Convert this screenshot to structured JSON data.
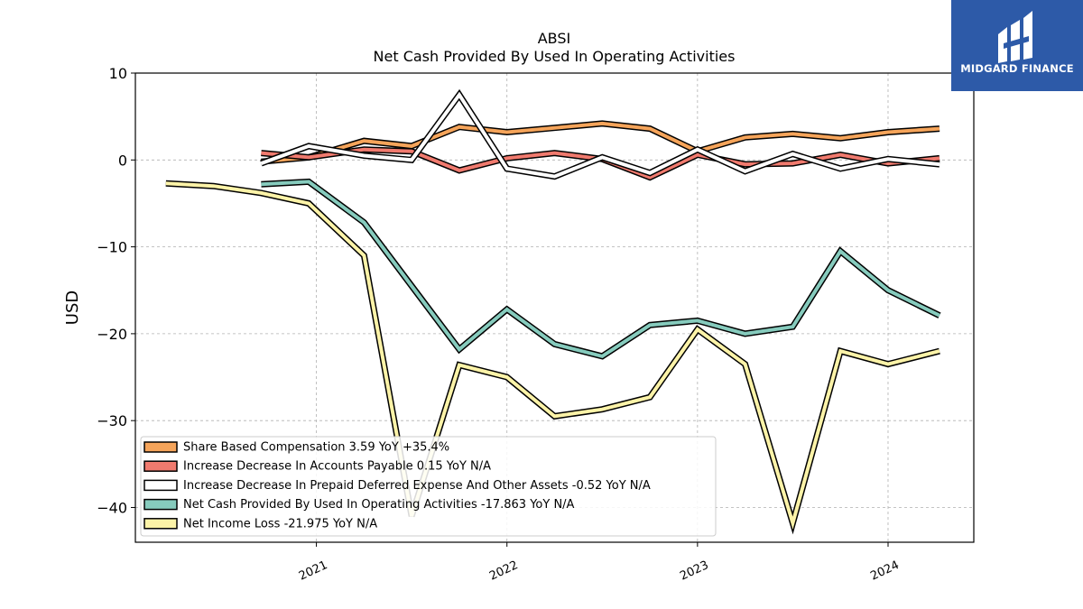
{
  "brand": {
    "name": "MIDGARD FINANCE",
    "bg_color": "#2d5aa8"
  },
  "chart_data": {
    "type": "line",
    "title": "ABSI",
    "subtitle": "Net Cash Provided By Used In Operating Activities",
    "ylabel": "USD",
    "xlabel": "",
    "ylim": [
      -44,
      10
    ],
    "yticks": [
      10,
      0,
      -10,
      -20,
      -30,
      -40
    ],
    "ytick_labels": [
      "10",
      "0",
      "−10",
      "−20",
      "−30",
      "−40"
    ],
    "xlim": [
      2020.05,
      2024.45
    ],
    "xticks": [
      2021,
      2022,
      2023,
      2024
    ],
    "xtick_labels": [
      "2021",
      "2022",
      "2023",
      "2024"
    ],
    "grid": true,
    "legend_position": "lower-left",
    "series": [
      {
        "name": "Share Based Compensation",
        "legend": "Share Based Compensation  3.59 YoY +35.4%",
        "color": "#f5a45a",
        "x": [
          2020.71,
          2020.96,
          2021.25,
          2021.5,
          2021.75,
          2022.0,
          2022.25,
          2022.5,
          2022.75,
          2023.0,
          2023.25,
          2023.5,
          2023.75,
          2024.0,
          2024.27
        ],
        "y": [
          -0.2,
          0.3,
          2.2,
          1.6,
          3.8,
          3.2,
          3.7,
          4.2,
          3.6,
          1.0,
          2.6,
          3.0,
          2.5,
          3.2,
          3.6
        ]
      },
      {
        "name": "Increase Decrease In Accounts Payable",
        "legend": "Increase Decrease In Accounts Payable  0.15 YoY N/A",
        "color": "#f07a6e",
        "x": [
          2020.71,
          2020.96,
          2021.25,
          2021.5,
          2021.75,
          2022.0,
          2022.25,
          2022.5,
          2022.75,
          2023.0,
          2023.25,
          2023.5,
          2023.75,
          2024.0,
          2024.27
        ],
        "y": [
          0.8,
          0.3,
          1.2,
          1.0,
          -1.2,
          0.2,
          0.8,
          0.1,
          -2.0,
          0.6,
          -0.5,
          -0.4,
          0.6,
          -0.4,
          0.2
        ]
      },
      {
        "name": "Increase Decrease In Prepaid Deferred Expense And Other Assets",
        "legend": "Increase Decrease In Prepaid Deferred Expense And Other Assets  -0.52 YoY N/A",
        "color": "#ffffff",
        "x": [
          2020.71,
          2020.96,
          2021.25,
          2021.5,
          2021.75,
          2022.0,
          2022.25,
          2022.5,
          2022.75,
          2023.0,
          2023.25,
          2023.5,
          2023.75,
          2024.0,
          2024.27
        ],
        "y": [
          -0.4,
          1.6,
          0.5,
          0.0,
          7.5,
          -1.0,
          -1.9,
          0.3,
          -1.5,
          1.2,
          -1.3,
          0.7,
          -1.0,
          0.1,
          -0.5
        ]
      },
      {
        "name": "Net Cash Provided By Used In Operating Activities",
        "legend": "Net Cash Provided By Used In Operating Activities  -17.863 YoY N/A",
        "color": "#86cbbd",
        "x": [
          2020.71,
          2020.96,
          2021.25,
          2021.5,
          2021.75,
          2022.0,
          2022.25,
          2022.5,
          2022.75,
          2023.0,
          2023.25,
          2023.5,
          2023.75,
          2024.0,
          2024.27
        ],
        "y": [
          -2.8,
          -2.5,
          -7.2,
          -14.5,
          -21.8,
          -17.2,
          -21.2,
          -22.6,
          -19.0,
          -18.5,
          -20.0,
          -19.2,
          -10.5,
          -15.0,
          -17.9
        ]
      },
      {
        "name": "Net Income Loss",
        "legend": "Net Income Loss  -21.975 YoY N/A",
        "color": "#fcf3a8",
        "x": [
          2020.21,
          2020.46,
          2020.71,
          2020.96,
          2021.25,
          2021.5,
          2021.75,
          2022.0,
          2022.25,
          2022.5,
          2022.75,
          2023.0,
          2023.25,
          2023.5,
          2023.75,
          2024.0,
          2024.27
        ],
        "y": [
          -2.7,
          -3.0,
          -3.8,
          -5.0,
          -11.0,
          -41.0,
          -23.6,
          -25.0,
          -29.5,
          -28.7,
          -27.3,
          -19.5,
          -23.5,
          -41.8,
          -22.0,
          -23.5,
          -22.0
        ]
      }
    ]
  }
}
